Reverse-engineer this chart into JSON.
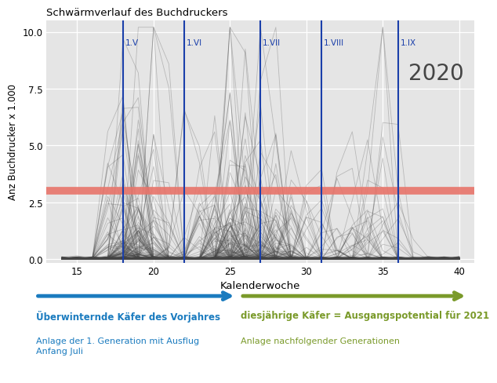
{
  "title": "Schwärmverlauf des Buchdruckers",
  "xlabel": "Kalenderwoche",
  "ylabel": "Anz Buchdrucker x 1.000",
  "year_label": "2020",
  "xlim": [
    13.0,
    41.0
  ],
  "ylim": [
    -0.15,
    10.5
  ],
  "xticks": [
    15,
    20,
    25,
    30,
    35,
    40
  ],
  "yticks": [
    0.0,
    2.5,
    5.0,
    7.5,
    10.0
  ],
  "threshold_value": 3.0,
  "threshold_color": "#E8746A",
  "threshold_alpha": 0.9,
  "threshold_lw": 7,
  "vlines": [
    18,
    22,
    27,
    31,
    36
  ],
  "vline_labels": [
    "1.V",
    "1.VI",
    "1.VII",
    "1.VIII",
    "1.IX"
  ],
  "vline_color": "#1a3faa",
  "vline_lw": 1.5,
  "curve_color": "#444444",
  "curve_alpha": 0.28,
  "curve_lw": 0.6,
  "bg_color": "#e5e5e5",
  "n_curves": 250,
  "blue_arrow_color": "#1a7bbf",
  "green_arrow_color": "#7a9a2a",
  "blue_text_bold": "Überwinternde Käfer des Vorjahres",
  "blue_text_small": "Anlage der 1. Generation mit Ausflug\nAnfang Juli",
  "green_text_bold": "diesjährige Käfer = Ausgangspotential für 2021",
  "green_text_small": "Anlage nachfolgender Generationen"
}
